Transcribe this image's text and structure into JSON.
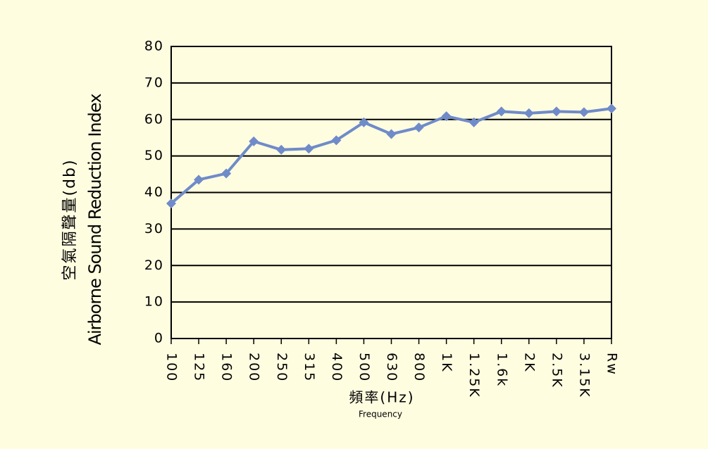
{
  "chart_data": {
    "type": "line",
    "y_label_lines": [
      "空氣隔聲量(db)",
      "Airborne Sound Reduction Index"
    ],
    "x_label_lines": [
      "頻率(Hz)",
      "Frequency"
    ],
    "categories": [
      "100",
      "125",
      "160",
      "200",
      "250",
      "315",
      "400",
      "500",
      "630",
      "800",
      "1K",
      "1.25K",
      "1.6k",
      "2K",
      "2.5K",
      "3.15K",
      "Rw"
    ],
    "series": [
      {
        "color": "#6f8bc9",
        "values": [
          37,
          43.5,
          45.2,
          54,
          51.7,
          52,
          54.3,
          59.2,
          56,
          57.8,
          60.9,
          59.2,
          62.2,
          61.7,
          62.2,
          62,
          63
        ]
      }
    ],
    "ylim": [
      0,
      80
    ],
    "yticks": [
      0,
      10,
      20,
      30,
      40,
      50,
      60,
      70,
      80
    ],
    "grid": true
  }
}
